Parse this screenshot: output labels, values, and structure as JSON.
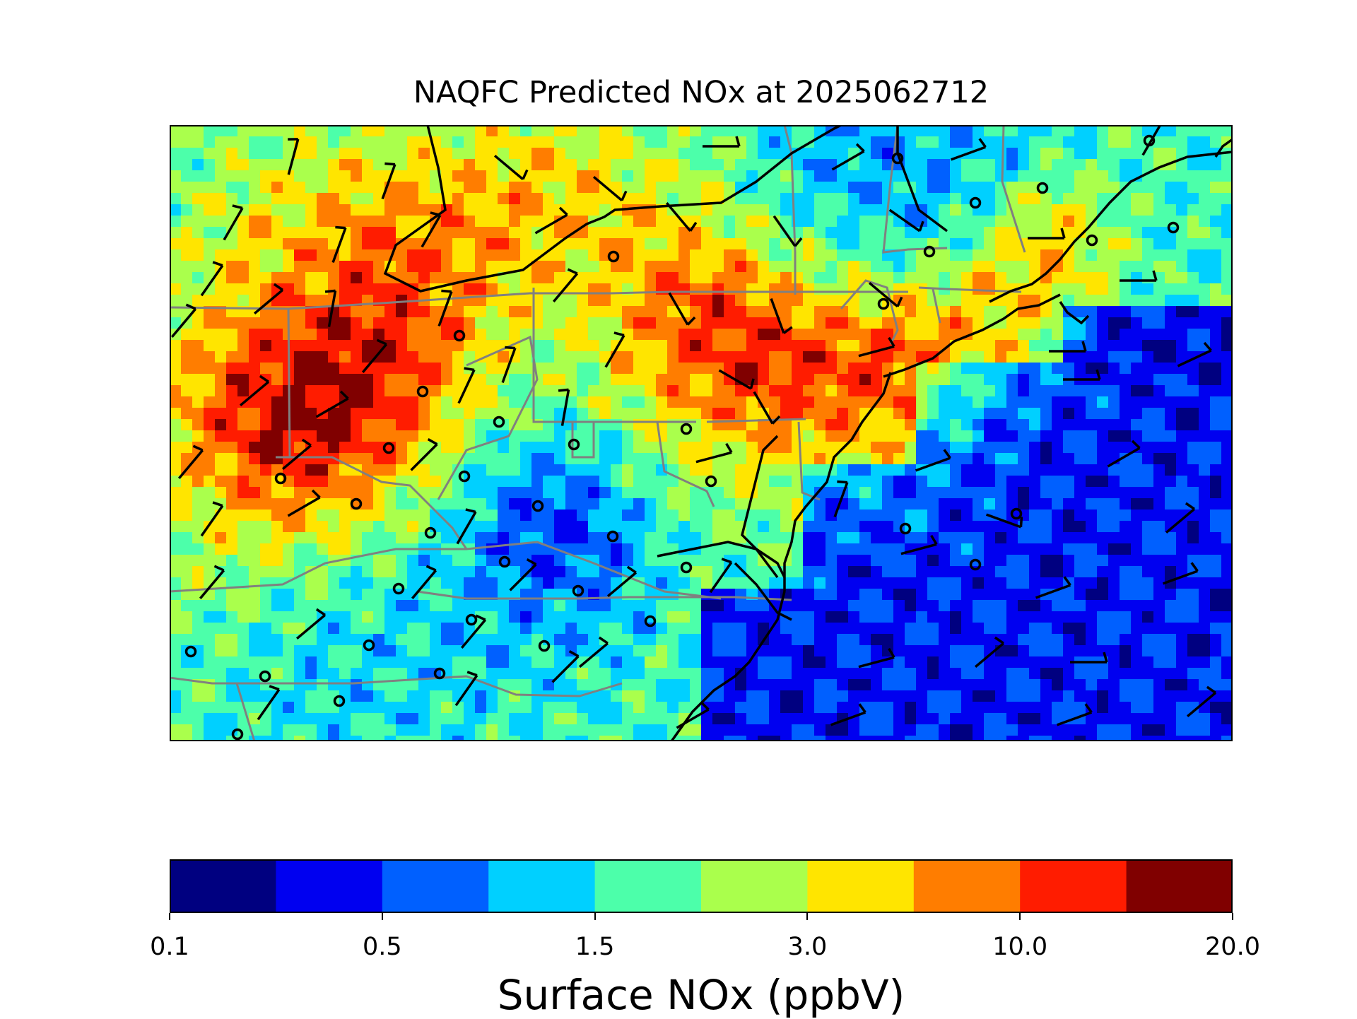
{
  "map": {
    "title": "NAQFC Predicted NOx at 2025062712"
  },
  "colorbar": {
    "label": "Surface NOx (ppbV)",
    "colors": [
      "#000080",
      "#0000f0",
      "#0060ff",
      "#00d0ff",
      "#4cffaa",
      "#aaff4c",
      "#ffe500",
      "#ff7d00",
      "#ff1c00",
      "#800000"
    ],
    "tick_labels": [
      "0.1",
      "0.5",
      "1.5",
      "3.0",
      "10.0",
      "20.0"
    ]
  },
  "colors": {
    "coastline": "#000000",
    "state_borders": "#808080",
    "wind_barbs": "#000000",
    "station_markers": "#000000"
  }
}
